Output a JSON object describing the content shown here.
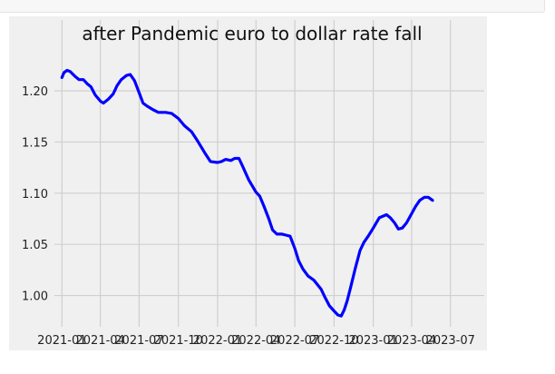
{
  "chart_data": {
    "type": "line",
    "title": "after Pandemic euro to dollar rate fall",
    "xlabel": "",
    "ylabel": "",
    "x_tick_labels": [
      "2021-01",
      "2021-04",
      "2021-07",
      "2021-10",
      "2022-01",
      "2022-04",
      "2022-07",
      "2022-10",
      "2023-01",
      "2023-04",
      "2023-07"
    ],
    "y_tick_labels": [
      "1.00",
      "1.05",
      "1.10",
      "1.15",
      "1.20"
    ],
    "y_ticks": [
      1.0,
      1.05,
      1.1,
      1.15,
      1.2
    ],
    "ylim": [
      0.973,
      1.24
    ],
    "xlim": [
      "2020-12-10",
      "2023-07-25"
    ],
    "grid": true,
    "legend": "none",
    "series": [
      {
        "color": "#0000ff",
        "points": [
          [
            "2021-01-01",
            1.213
          ],
          [
            "2021-01-06",
            1.218
          ],
          [
            "2021-01-13",
            1.22
          ],
          [
            "2021-01-20",
            1.219
          ],
          [
            "2021-02-01",
            1.214
          ],
          [
            "2021-02-10",
            1.211
          ],
          [
            "2021-02-20",
            1.211
          ],
          [
            "2021-03-01",
            1.207
          ],
          [
            "2021-03-10",
            1.204
          ],
          [
            "2021-03-20",
            1.196
          ],
          [
            "2021-04-01",
            1.19
          ],
          [
            "2021-04-08",
            1.188
          ],
          [
            "2021-04-20",
            1.192
          ],
          [
            "2021-05-01",
            1.197
          ],
          [
            "2021-05-10",
            1.205
          ],
          [
            "2021-05-20",
            1.211
          ],
          [
            "2021-06-01",
            1.215
          ],
          [
            "2021-06-10",
            1.216
          ],
          [
            "2021-06-20",
            1.21
          ],
          [
            "2021-07-01",
            1.198
          ],
          [
            "2021-07-10",
            1.188
          ],
          [
            "2021-07-20",
            1.185
          ],
          [
            "2021-08-01",
            1.182
          ],
          [
            "2021-08-15",
            1.179
          ],
          [
            "2021-09-01",
            1.179
          ],
          [
            "2021-09-15",
            1.178
          ],
          [
            "2021-10-01",
            1.173
          ],
          [
            "2021-10-15",
            1.166
          ],
          [
            "2021-11-01",
            1.16
          ],
          [
            "2021-11-15",
            1.151
          ],
          [
            "2021-12-01",
            1.14
          ],
          [
            "2021-12-15",
            1.131
          ],
          [
            "2022-01-01",
            1.13
          ],
          [
            "2022-01-10",
            1.131
          ],
          [
            "2022-01-20",
            1.133
          ],
          [
            "2022-02-01",
            1.132
          ],
          [
            "2022-02-10",
            1.134
          ],
          [
            "2022-02-20",
            1.134
          ],
          [
            "2022-03-01",
            1.126
          ],
          [
            "2022-03-15",
            1.113
          ],
          [
            "2022-04-01",
            1.101
          ],
          [
            "2022-04-10",
            1.097
          ],
          [
            "2022-04-20",
            1.087
          ],
          [
            "2022-05-01",
            1.075
          ],
          [
            "2022-05-10",
            1.064
          ],
          [
            "2022-05-20",
            1.06
          ],
          [
            "2022-06-01",
            1.06
          ],
          [
            "2022-06-10",
            1.059
          ],
          [
            "2022-06-20",
            1.058
          ],
          [
            "2022-07-01",
            1.046
          ],
          [
            "2022-07-10",
            1.034
          ],
          [
            "2022-07-20",
            1.026
          ],
          [
            "2022-08-01",
            1.019
          ],
          [
            "2022-08-15",
            1.015
          ],
          [
            "2022-09-01",
            1.006
          ],
          [
            "2022-09-10",
            0.998
          ],
          [
            "2022-09-20",
            0.99
          ],
          [
            "2022-10-01",
            0.985
          ],
          [
            "2022-10-10",
            0.981
          ],
          [
            "2022-10-18",
            0.98
          ],
          [
            "2022-10-25",
            0.986
          ],
          [
            "2022-11-01",
            0.995
          ],
          [
            "2022-11-10",
            1.01
          ],
          [
            "2022-11-20",
            1.027
          ],
          [
            "2022-12-01",
            1.044
          ],
          [
            "2022-12-10",
            1.052
          ],
          [
            "2022-12-20",
            1.058
          ],
          [
            "2023-01-01",
            1.066
          ],
          [
            "2023-01-15",
            1.076
          ],
          [
            "2023-02-01",
            1.079
          ],
          [
            "2023-02-10",
            1.076
          ],
          [
            "2023-02-20",
            1.071
          ],
          [
            "2023-03-01",
            1.065
          ],
          [
            "2023-03-10",
            1.066
          ],
          [
            "2023-03-20",
            1.071
          ],
          [
            "2023-04-01",
            1.08
          ],
          [
            "2023-04-10",
            1.087
          ],
          [
            "2023-04-20",
            1.093
          ],
          [
            "2023-05-01",
            1.096
          ],
          [
            "2023-05-10",
            1.096
          ],
          [
            "2023-05-20",
            1.093
          ]
        ]
      }
    ]
  }
}
